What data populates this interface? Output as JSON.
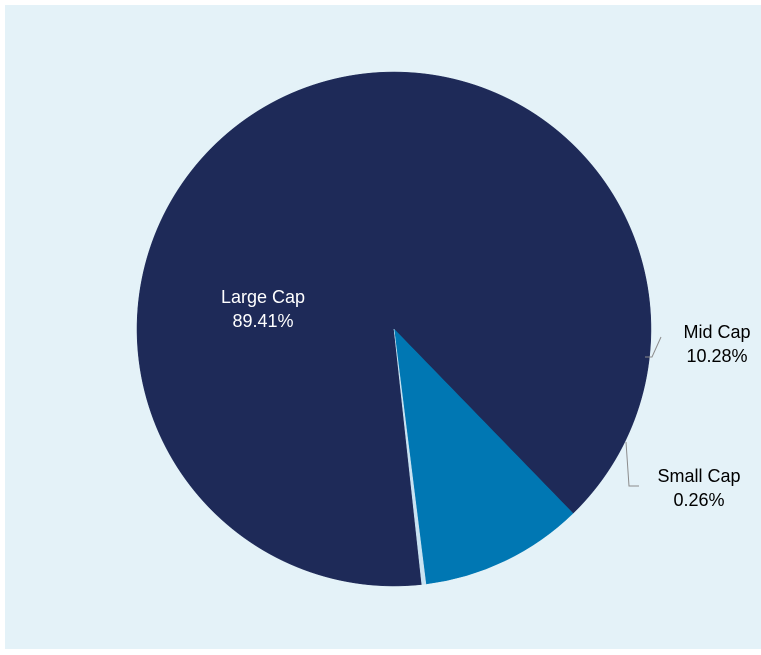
{
  "chart_data": {
    "type": "pie",
    "title": "",
    "slices": [
      {
        "name": "Large Cap",
        "value": 89.41,
        "label_value": "89.41%",
        "color": "#1e2a58",
        "label_color": "#ffffff"
      },
      {
        "name": "Mid Cap",
        "value": 10.28,
        "label_value": "10.28%",
        "color": "#0077b3",
        "label_color": "#000000"
      },
      {
        "name": "Small Cap",
        "value": 0.26,
        "label_value": "0.26%",
        "color": "#c9e3f2",
        "label_color": "#000000"
      }
    ],
    "legend": "none",
    "background_color": "#e4f2f8"
  }
}
